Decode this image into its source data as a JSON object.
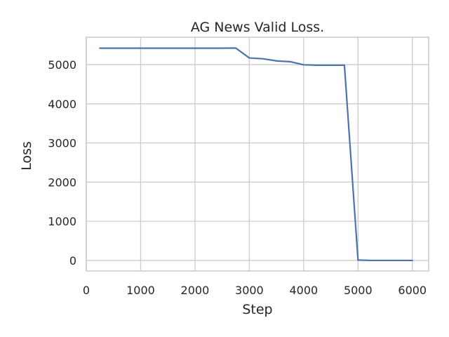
{
  "chart_data": {
    "type": "line",
    "title": "AG News Valid Loss.",
    "xlabel": "Step",
    "ylabel": "Loss",
    "xlim": [
      0,
      6300
    ],
    "ylim": [
      -270,
      5700
    ],
    "xticks": [
      0,
      1000,
      2000,
      3000,
      4000,
      5000,
      6000
    ],
    "yticks": [
      0,
      1000,
      2000,
      3000,
      4000,
      5000
    ],
    "grid": true,
    "series": [
      {
        "color": "#4c72b0",
        "x": [
          250,
          500,
          750,
          1000,
          1250,
          1500,
          1750,
          2000,
          2250,
          2500,
          2750,
          3000,
          3250,
          3500,
          3750,
          4000,
          4250,
          4500,
          4750,
          5000,
          5250,
          5500,
          5750,
          6000
        ],
        "y": [
          5420,
          5420,
          5420,
          5420,
          5420,
          5420,
          5420,
          5420,
          5420,
          5420,
          5425,
          5170,
          5150,
          5095,
          5075,
          4995,
          4985,
          4985,
          4985,
          10,
          0,
          0,
          0,
          0
        ]
      }
    ]
  }
}
